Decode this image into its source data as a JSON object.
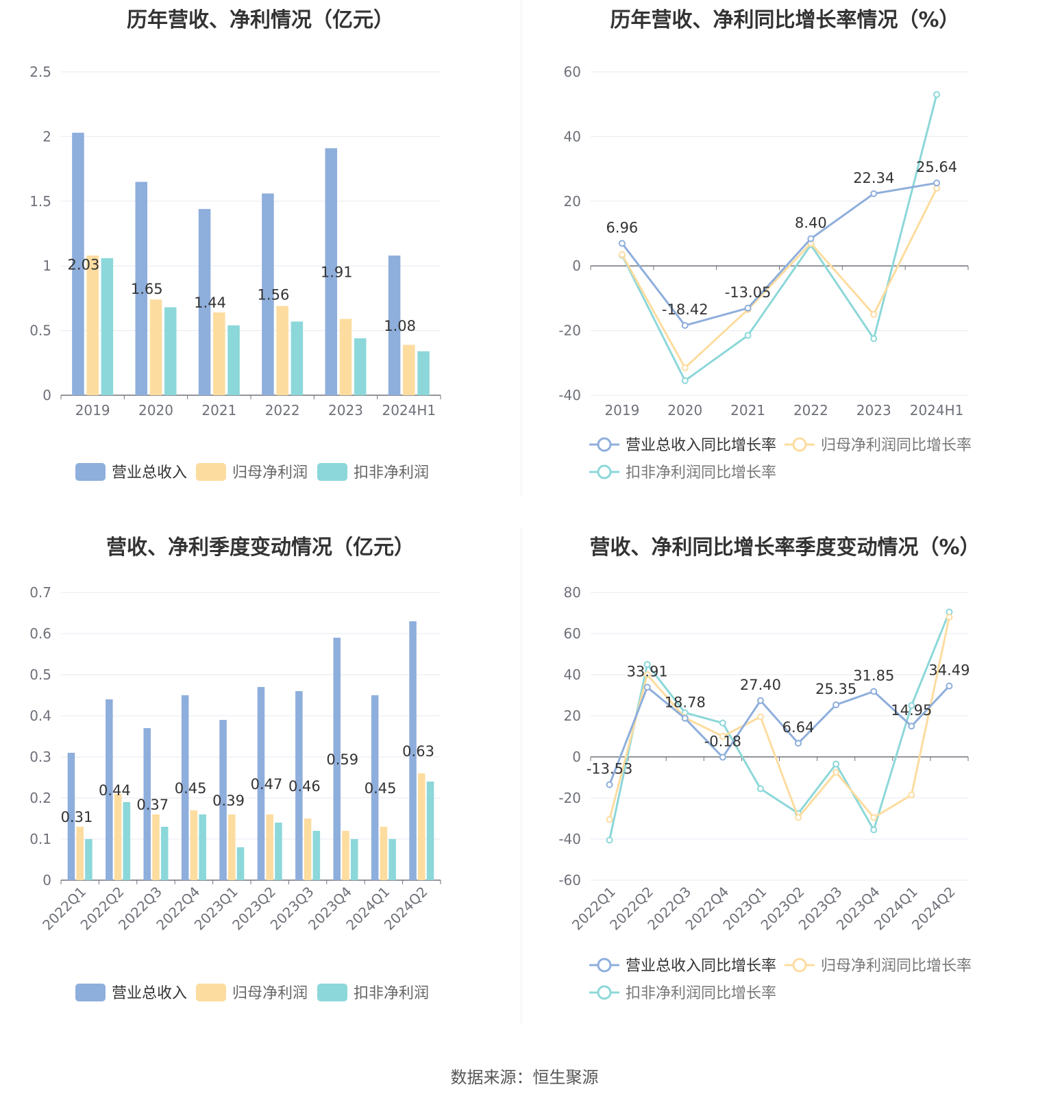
{
  "source_text": "数据来源：恒生聚源",
  "colors": {
    "revenue": "#8eaedc",
    "net_profit": "#fddc9f",
    "deducted_profit": "#8cd7d9",
    "grid": "#e6e9f2",
    "axis": "#6e7079",
    "label": "#333333"
  },
  "chart_data": [
    {
      "type": "bar",
      "title": "历年营收、净利情况（亿元）",
      "categories": [
        "2019",
        "2020",
        "2021",
        "2022",
        "2023",
        "2024H1"
      ],
      "y_ticks": [
        "0",
        "0.5",
        "1",
        "1.5",
        "2",
        "2.5"
      ],
      "ylim": [
        0,
        2.5
      ],
      "series": [
        {
          "name": "营业总收入",
          "color": "#8eaedc",
          "values": [
            2.03,
            1.65,
            1.44,
            1.56,
            1.91,
            1.08
          ],
          "labels": [
            "2.03",
            "1.65",
            "1.44",
            "1.56",
            "1.91",
            "1.08"
          ]
        },
        {
          "name": "归母净利润",
          "color": "#fddc9f",
          "values": [
            1.08,
            0.74,
            0.64,
            0.69,
            0.59,
            0.39
          ]
        },
        {
          "name": "扣非净利润",
          "color": "#8cd7d9",
          "values": [
            1.06,
            0.68,
            0.54,
            0.57,
            0.44,
            0.34
          ]
        }
      ],
      "legend": "bottom"
    },
    {
      "type": "line",
      "title": "历年营收、净利同比增长率情况（%）",
      "categories": [
        "2019",
        "2020",
        "2021",
        "2022",
        "2023",
        "2024H1"
      ],
      "y_ticks": [
        "-40",
        "-20",
        "0",
        "20",
        "40",
        "60"
      ],
      "ylim": [
        -40,
        60
      ],
      "series": [
        {
          "name": "营业总收入同比增长率",
          "color": "#8eaedc",
          "values": [
            6.96,
            -18.42,
            -13.05,
            8.4,
            22.34,
            25.64
          ],
          "labels": [
            "6.96",
            "-18.42",
            "-13.05",
            "8.40",
            "22.34",
            "25.64"
          ]
        },
        {
          "name": "归母净利润同比增长率",
          "color": "#fddc9f",
          "values": [
            3.5,
            -31.5,
            -13.5,
            7.0,
            -15.0,
            24.0
          ]
        },
        {
          "name": "扣非净利润同比增长率",
          "color": "#8cd7d9",
          "values": [
            3.3,
            -35.5,
            -21.5,
            6.5,
            -22.5,
            53.0
          ]
        }
      ],
      "legend": "bottom"
    },
    {
      "type": "bar",
      "title": "营收、净利季度变动情况（亿元）",
      "categories": [
        "2022Q1",
        "2022Q2",
        "2022Q3",
        "2022Q4",
        "2023Q1",
        "2023Q2",
        "2023Q3",
        "2023Q4",
        "2024Q1",
        "2024Q2"
      ],
      "y_ticks": [
        "0",
        "0.1",
        "0.2",
        "0.3",
        "0.4",
        "0.5",
        "0.6",
        "0.7"
      ],
      "ylim": [
        0,
        0.7
      ],
      "series": [
        {
          "name": "营业总收入",
          "color": "#8eaedc",
          "values": [
            0.31,
            0.44,
            0.37,
            0.45,
            0.39,
            0.47,
            0.46,
            0.59,
            0.45,
            0.63
          ],
          "labels": [
            "0.31",
            "0.44",
            "0.37",
            "0.45",
            "0.39",
            "0.47",
            "0.46",
            "0.59",
            "0.45",
            "0.63"
          ]
        },
        {
          "name": "归母净利润",
          "color": "#fddc9f",
          "values": [
            0.13,
            0.21,
            0.16,
            0.17,
            0.16,
            0.16,
            0.15,
            0.12,
            0.13,
            0.26
          ]
        },
        {
          "name": "扣非净利润",
          "color": "#8cd7d9",
          "values": [
            0.1,
            0.19,
            0.13,
            0.16,
            0.08,
            0.14,
            0.12,
            0.1,
            0.1,
            0.24
          ]
        }
      ],
      "legend": "bottom"
    },
    {
      "type": "line",
      "title": "营收、净利同比增长率季度变动情况（%）",
      "categories": [
        "2022Q1",
        "2022Q2",
        "2022Q3",
        "2022Q4",
        "2023Q1",
        "2023Q2",
        "2023Q3",
        "2023Q4",
        "2024Q1",
        "2024Q2"
      ],
      "y_ticks": [
        "-60",
        "-40",
        "-20",
        "0",
        "20",
        "40",
        "60",
        "80"
      ],
      "ylim": [
        -60,
        80
      ],
      "series": [
        {
          "name": "营业总收入同比增长率",
          "color": "#8eaedc",
          "values": [
            -13.53,
            33.91,
            18.78,
            -0.18,
            27.4,
            6.64,
            25.35,
            31.85,
            14.95,
            34.49
          ],
          "labels": [
            "-13.53",
            "33.91",
            "18.78",
            "-0.18",
            "27.40",
            "6.64",
            "25.35",
            "31.85",
            "14.95",
            "34.49"
          ]
        },
        {
          "name": "归母净利润同比增长率",
          "color": "#fddc9f",
          "values": [
            -30.5,
            40.0,
            19.0,
            10.0,
            19.5,
            -29.5,
            -7.5,
            -29.5,
            -18.5,
            68.0
          ]
        },
        {
          "name": "扣非净利润同比增长率",
          "color": "#8cd7d9",
          "values": [
            -40.5,
            45.0,
            21.5,
            16.5,
            -15.5,
            -27.5,
            -3.5,
            -35.5,
            25.0,
            70.5
          ]
        }
      ],
      "legend": "bottom"
    }
  ]
}
